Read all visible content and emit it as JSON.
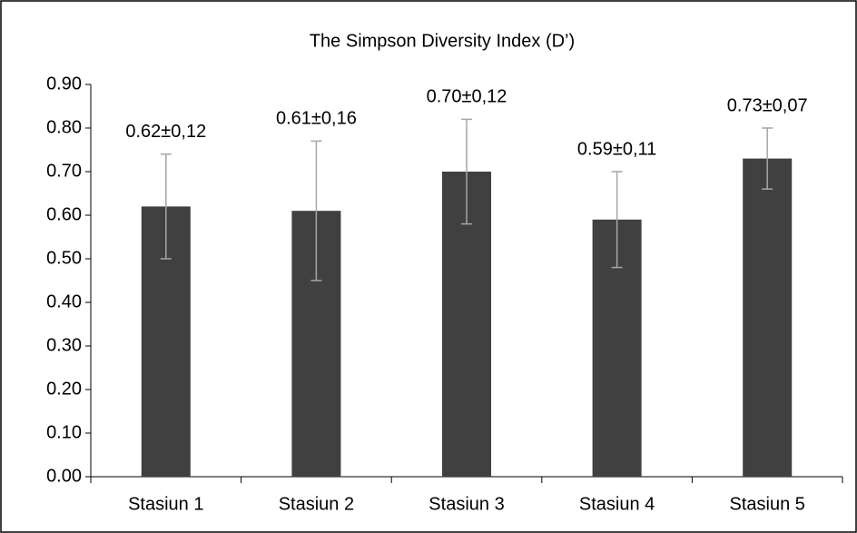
{
  "chart_data": {
    "type": "bar",
    "title": "The Simpson Diversity Index (D’)",
    "categories": [
      "Stasiun 1",
      "Stasiun 2",
      "Stasiun 3",
      "Stasiun 4",
      "Stasiun 5"
    ],
    "values": [
      0.62,
      0.61,
      0.7,
      0.59,
      0.73
    ],
    "errors": [
      0.12,
      0.16,
      0.12,
      0.11,
      0.07
    ],
    "value_labels": [
      "0.62±0,12",
      "0.61±0,16",
      "0.70±0,12",
      "0.59±0,11",
      "0.73±0,07"
    ],
    "color": "#404040",
    "error_color": "#a6a6a6",
    "ylim": [
      0,
      0.9
    ],
    "yticks": [
      {
        "value": 0,
        "label": "0.00"
      },
      {
        "value": 0.1,
        "label": "0.10"
      },
      {
        "value": 0.2,
        "label": "0.20"
      },
      {
        "value": 0.3,
        "label": "0.30"
      },
      {
        "value": 0.4,
        "label": "0.40"
      },
      {
        "value": 0.5,
        "label": "0.50"
      },
      {
        "value": 0.6,
        "label": "0.60"
      },
      {
        "value": 0.7,
        "label": "0.70"
      },
      {
        "value": 0.8,
        "label": "0.80"
      },
      {
        "value": 0.9,
        "label": "0.90"
      }
    ],
    "grid": false
  }
}
